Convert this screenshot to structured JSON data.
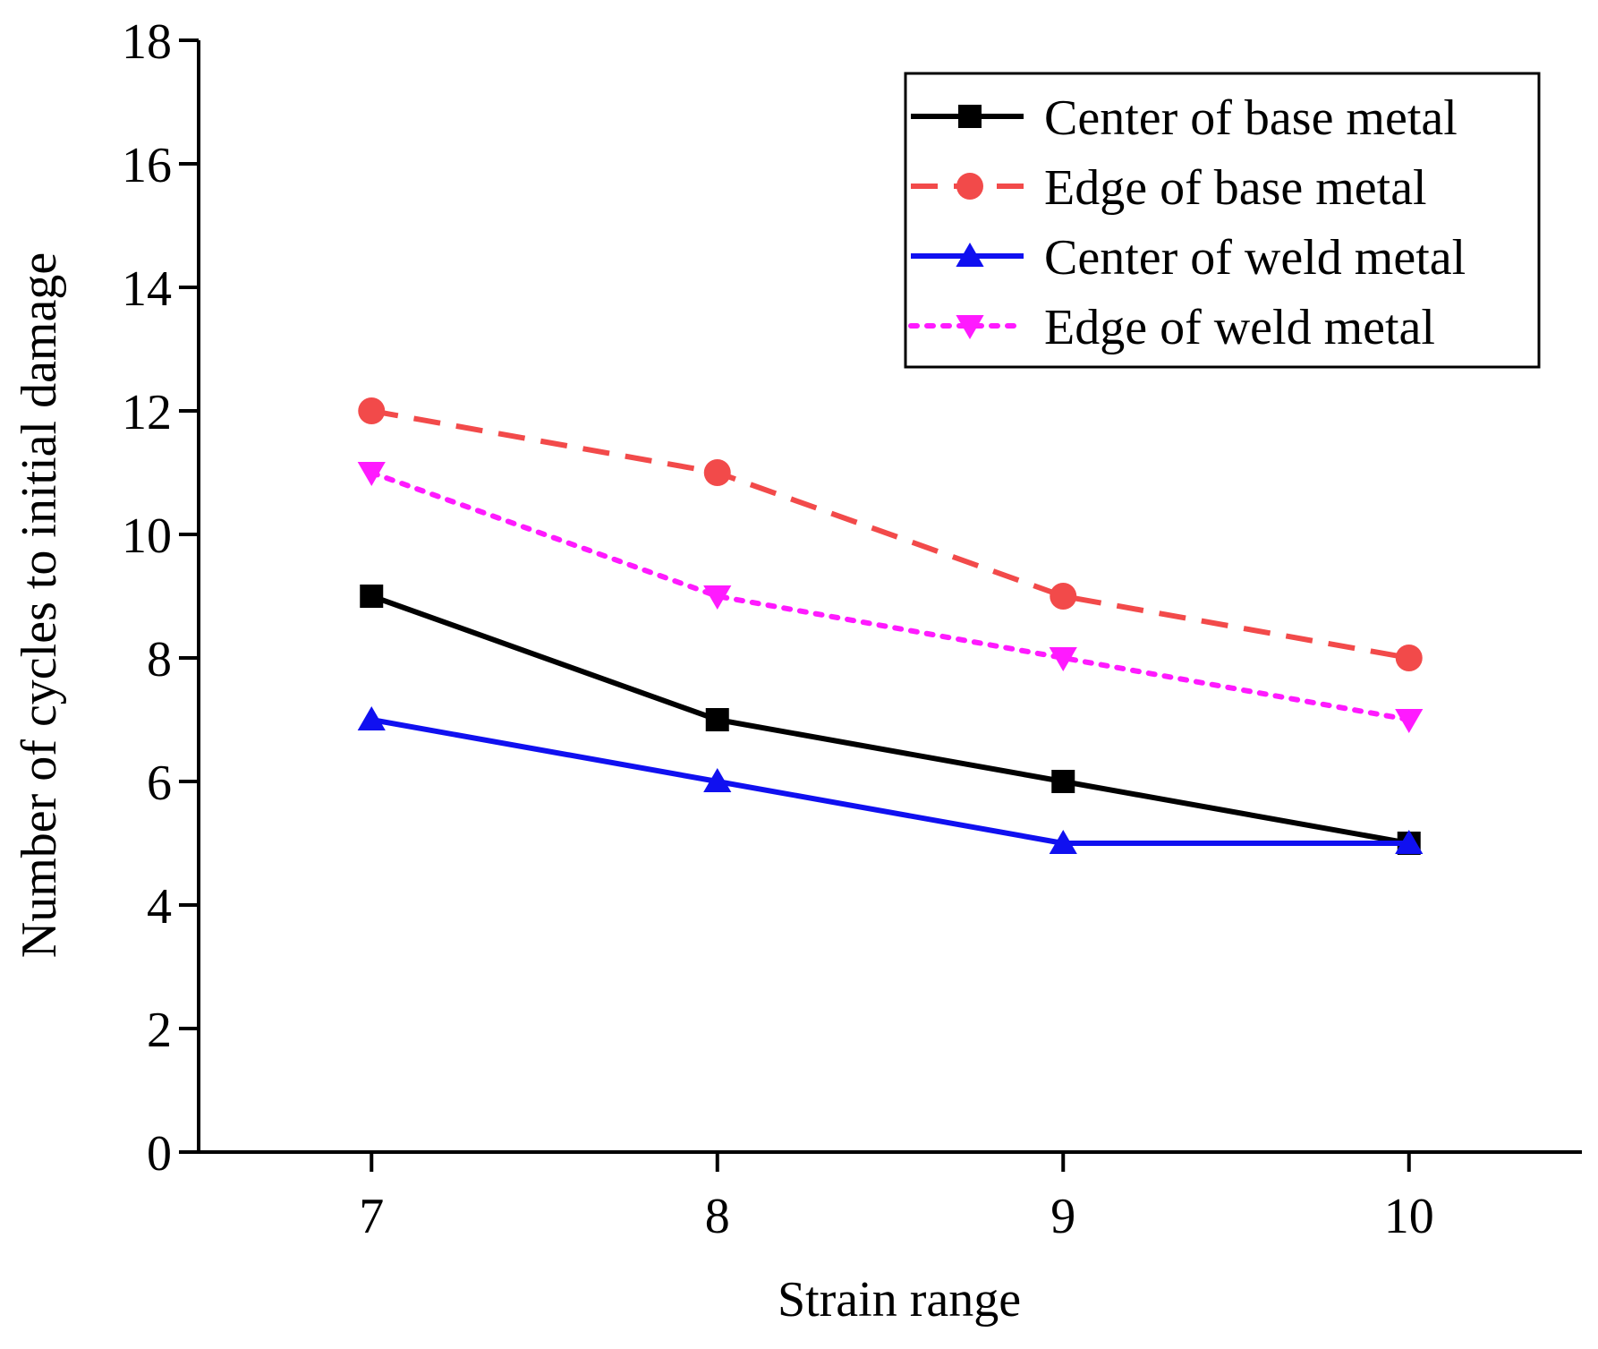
{
  "chart_data": {
    "type": "line",
    "title": "",
    "xlabel": "Strain range",
    "ylabel": "Number of cycles to initial damage",
    "x": [
      7,
      8,
      9,
      10
    ],
    "xlim": [
      6.5,
      10.5
    ],
    "ylim": [
      0,
      18
    ],
    "xticks": [
      7,
      8,
      9,
      10
    ],
    "yticks": [
      0,
      2,
      4,
      6,
      8,
      10,
      12,
      14,
      16,
      18
    ],
    "grid": false,
    "legend_position": "top-right",
    "series": [
      {
        "name": "Center of base metal",
        "values": [
          9,
          7,
          6,
          5
        ],
        "color": "#000000",
        "line_style": "solid",
        "marker": "square"
      },
      {
        "name": "Edge of base metal",
        "values": [
          12,
          11,
          9,
          8
        ],
        "color": "#F24A4A",
        "line_style": "dashed",
        "marker": "circle"
      },
      {
        "name": "Center of weld metal",
        "values": [
          7,
          6,
          5,
          5
        ],
        "color": "#1010F0",
        "line_style": "solid",
        "marker": "triangle-up"
      },
      {
        "name": "Edge of weld metal",
        "values": [
          11,
          9,
          8,
          7
        ],
        "color": "#FF1AFF",
        "line_style": "dotted",
        "marker": "triangle-down"
      }
    ]
  }
}
